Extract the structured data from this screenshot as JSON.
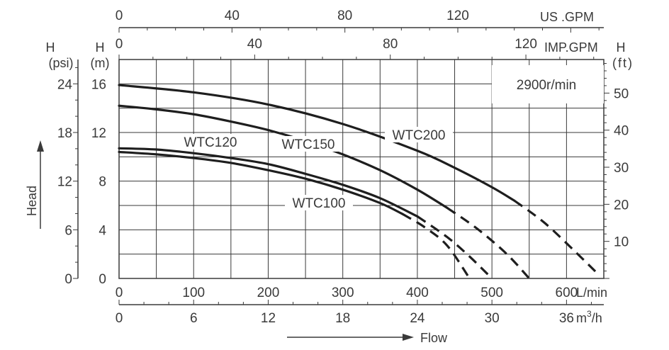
{
  "chart_data": {
    "type": "line",
    "title": "",
    "speed_label": "2900r/min",
    "x_axis": {
      "label": "Flow",
      "unit": "L/min",
      "range": [
        0,
        650
      ],
      "ticks": [
        0,
        100,
        200,
        300,
        400,
        500,
        600
      ],
      "tick_labels": [
        "0",
        "100",
        "200",
        "300",
        "400",
        "500",
        "600"
      ]
    },
    "x_axis_m3h": {
      "unit": "m³/h",
      "unit_base": "m",
      "unit_sup": "3",
      "unit_tail": "/h",
      "ticks": [
        0,
        6,
        12,
        18,
        24,
        30,
        36
      ],
      "tick_labels": [
        "0",
        "6",
        "12",
        "18",
        "24",
        "30",
        "36"
      ]
    },
    "x_axis_us_gpm": {
      "unit": "US .GPM",
      "ticks": [
        0,
        40,
        80,
        120
      ],
      "tick_labels": [
        "0",
        "40",
        "80",
        "120"
      ]
    },
    "x_axis_imp_gpm": {
      "unit": "IMP.GPM",
      "ticks": [
        0,
        40,
        80,
        120
      ],
      "tick_labels": [
        "0",
        "40",
        "80",
        "120"
      ]
    },
    "y_axis": {
      "label": "Head",
      "unit_h": "H",
      "unit": "(m)",
      "range": [
        0,
        18
      ],
      "ticks": [
        0,
        4,
        8,
        12,
        16
      ],
      "tick_labels": [
        "0",
        "4",
        "8",
        "12",
        "16"
      ]
    },
    "y_axis_psi": {
      "unit_h": "H",
      "unit": "(psi)",
      "ticks": [
        0,
        6,
        12,
        18,
        24
      ],
      "tick_labels": [
        "0",
        "6",
        "12",
        "18",
        "24"
      ]
    },
    "y_axis_ft": {
      "unit_h": "H",
      "unit": "(ft)",
      "ticks": [
        10,
        20,
        30,
        40,
        50
      ],
      "tick_labels": [
        "10",
        "20",
        "30",
        "40",
        "50"
      ]
    },
    "grid": true,
    "legend": "inline labels",
    "series": [
      {
        "name": "WTC100",
        "solid": [
          [
            0,
            10.4
          ],
          [
            50,
            10.2
          ],
          [
            100,
            9.9
          ],
          [
            150,
            9.5
          ],
          [
            200,
            8.9
          ],
          [
            250,
            8.2
          ],
          [
            300,
            7.3
          ],
          [
            350,
            6.2
          ],
          [
            380,
            5.3
          ]
        ],
        "dashed": [
          [
            380,
            5.3
          ],
          [
            410,
            4.2
          ],
          [
            440,
            2.7
          ],
          [
            470,
            0
          ]
        ]
      },
      {
        "name": "WTC120",
        "solid": [
          [
            0,
            10.7
          ],
          [
            50,
            10.6
          ],
          [
            100,
            10.3
          ],
          [
            150,
            9.9
          ],
          [
            200,
            9.4
          ],
          [
            250,
            8.6
          ],
          [
            300,
            7.7
          ],
          [
            350,
            6.6
          ],
          [
            400,
            5.1
          ]
        ],
        "dashed": [
          [
            400,
            5.1
          ],
          [
            440,
            3.4
          ],
          [
            470,
            1.8
          ],
          [
            500,
            0
          ]
        ]
      },
      {
        "name": "WTC150",
        "solid": [
          [
            0,
            14.2
          ],
          [
            50,
            13.9
          ],
          [
            100,
            13.5
          ],
          [
            150,
            12.9
          ],
          [
            200,
            12.2
          ],
          [
            250,
            11.3
          ],
          [
            300,
            10.2
          ],
          [
            350,
            8.9
          ],
          [
            400,
            7.3
          ],
          [
            440,
            5.8
          ]
        ],
        "dashed": [
          [
            440,
            5.8
          ],
          [
            480,
            4.1
          ],
          [
            520,
            2.0
          ],
          [
            550,
            0
          ]
        ]
      },
      {
        "name": "WTC200",
        "solid": [
          [
            0,
            15.9
          ],
          [
            100,
            15.3
          ],
          [
            200,
            14.3
          ],
          [
            300,
            12.7
          ],
          [
            400,
            10.5
          ],
          [
            450,
            9.1
          ],
          [
            500,
            7.5
          ],
          [
            530,
            6.4
          ]
        ],
        "dashed": [
          [
            530,
            6.4
          ],
          [
            570,
            4.6
          ],
          [
            610,
            2.3
          ],
          [
            640,
            0.5
          ]
        ]
      }
    ]
  }
}
